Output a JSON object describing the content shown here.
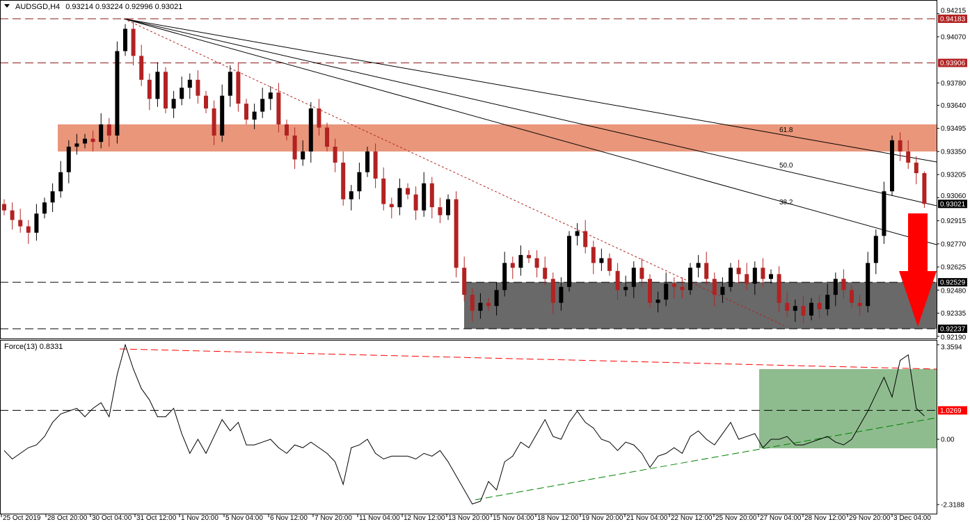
{
  "header": {
    "symbol": "AUDSGD,H4",
    "ohlc": "0.93214 0.93224 0.92996 0.93021"
  },
  "indicator_header": "Force(13) 0.8331",
  "colors": {
    "bull": "#000000",
    "bear": "#b22222",
    "resistance_zone": "#e9967a",
    "support_zone": "#696969",
    "indicator_zone": "#8fbc8f",
    "arrow": "#ff0000",
    "level_dark_red": "#b22222"
  },
  "price_axis": {
    "ticks": [
      "0.94215",
      "0.94070",
      "0.93780",
      "0.93640",
      "0.93495",
      "0.93350",
      "0.93205",
      "0.93060",
      "0.92915",
      "0.92770",
      "0.92625",
      "0.92480",
      "0.92335",
      "0.92190"
    ]
  },
  "price_labels": {
    "level_1": "0.94183",
    "level_2": "0.93906",
    "current": "0.93021",
    "support_top": "0.92529",
    "support_bottom": "0.92237"
  },
  "force_axis": {
    "max": "3.3594",
    "zero": "0.00",
    "min": "-2.3188",
    "level": "1.0269"
  },
  "fib_labels": {
    "f618": "61.8",
    "f500": "50.0",
    "f382": "38.2"
  },
  "time_axis": [
    "25 Oct 2019",
    "28 Oct 20:00",
    "30 Oct 04:00",
    "31 Oct 12:00",
    "1 Nov 20:00",
    "5 Nov 04:00",
    "6 Nov 12:00",
    "7 Nov 20:00",
    "11 Nov 04:00",
    "12 Nov 12:00",
    "13 Nov 20:00",
    "15 Nov 04:00",
    "18 Nov 12:00",
    "19 Nov 20:00",
    "21 Nov 04:00",
    "22 Nov 12:00",
    "25 Nov 20:00",
    "27 Nov 04:00",
    "28 Nov 12:00",
    "29 Nov 20:00",
    "3 Dec 04:00"
  ],
  "chart_data": [
    {
      "type": "candlestick",
      "title": "AUDSGD,H4",
      "ylim": [
        0.9219,
        0.94215
      ],
      "levels": [
        0.94183,
        0.93906,
        0.92529,
        0.92237
      ],
      "resistance_zone": [
        0.9335,
        0.9352
      ],
      "support_zone": [
        0.92237,
        0.92529
      ],
      "last": {
        "open": 0.93214,
        "high": 0.93224,
        "low": 0.92996,
        "close": 0.93021
      },
      "closes": [
        0.9298,
        0.9292,
        0.9288,
        0.9284,
        0.9296,
        0.9303,
        0.931,
        0.9322,
        0.9338,
        0.934,
        0.9343,
        0.9341,
        0.9352,
        0.9345,
        0.9398,
        0.9412,
        0.9395,
        0.938,
        0.9368,
        0.9385,
        0.9362,
        0.9368,
        0.9375,
        0.938,
        0.937,
        0.9362,
        0.9345,
        0.937,
        0.9385,
        0.9365,
        0.9355,
        0.936,
        0.9368,
        0.9372,
        0.9352,
        0.9345,
        0.933,
        0.9335,
        0.9362,
        0.935,
        0.9338,
        0.9328,
        0.9305,
        0.931,
        0.9322,
        0.9335,
        0.9318,
        0.9302,
        0.93,
        0.9312,
        0.9308,
        0.9298,
        0.9315,
        0.93,
        0.9295,
        0.9305,
        0.9262,
        0.9245,
        0.9235,
        0.924,
        0.9238,
        0.9248,
        0.9265,
        0.9262,
        0.927,
        0.9268,
        0.9262,
        0.9255,
        0.924,
        0.925,
        0.9282,
        0.9285,
        0.9275,
        0.9265,
        0.9268,
        0.926,
        0.9248,
        0.925,
        0.9262,
        0.9255,
        0.924,
        0.9242,
        0.9252,
        0.925,
        0.9248,
        0.9262,
        0.9265,
        0.9255,
        0.9245,
        0.925,
        0.9262,
        0.9258,
        0.9252,
        0.9262,
        0.9255,
        0.9258,
        0.924,
        0.9235,
        0.9238,
        0.9232,
        0.924,
        0.9236,
        0.9245,
        0.9255,
        0.9248,
        0.924,
        0.9238,
        0.9265,
        0.9282,
        0.931,
        0.9342,
        0.9335,
        0.9328,
        0.93214,
        0.93021
      ],
      "fibonacci_fan": [
        "38.2",
        "50.0",
        "61.8"
      ]
    },
    {
      "type": "line",
      "title": "Force(13)",
      "ylim": [
        -2.3188,
        3.3594
      ],
      "level": 1.0269,
      "values": [
        -0.4,
        -0.7,
        -0.5,
        -0.3,
        -0.2,
        0.1,
        0.6,
        0.9,
        1.0,
        1.1,
        0.8,
        1.1,
        1.3,
        0.8,
        2.3,
        3.36,
        2.5,
        1.8,
        1.4,
        0.8,
        0.8,
        1.1,
        0.2,
        -0.5,
        0,
        -0.5,
        0.1,
        0.7,
        0.3,
        0.6,
        -0.2,
        -0.2,
        -0.1,
        0,
        -0.3,
        -0.5,
        -0.2,
        -0.3,
        -0.1,
        -0.3,
        -0.5,
        -0.8,
        -1.6,
        -0.3,
        -0.2,
        0,
        -0.5,
        -0.7,
        -0.6,
        -0.6,
        -0.6,
        -0.7,
        -0.5,
        -0.6,
        -0.4,
        -0.8,
        -1.3,
        -1.8,
        -2.3,
        -2.2,
        -1.5,
        -1.8,
        -0.8,
        -0.6,
        -0.1,
        -0.3,
        0.2,
        0.7,
        0.1,
        0,
        0.6,
        1.0,
        0.6,
        0.4,
        0,
        -0.1,
        -0.4,
        -0.1,
        -0.2,
        -0.5,
        -1.0,
        -0.6,
        -0.5,
        -0.3,
        -0.5,
        0.1,
        0.3,
        0,
        -0.2,
        0.2,
        0.6,
        0,
        0.1,
        0.2,
        -0.3,
        0,
        0,
        0.1,
        -0.2,
        -0.2,
        -0.1,
        0,
        0.1,
        -0.1,
        -0.2,
        0,
        0.5,
        1.0,
        1.6,
        2.2,
        1.5,
        2.8,
        3.0,
        1.1,
        0.83
      ]
    }
  ]
}
